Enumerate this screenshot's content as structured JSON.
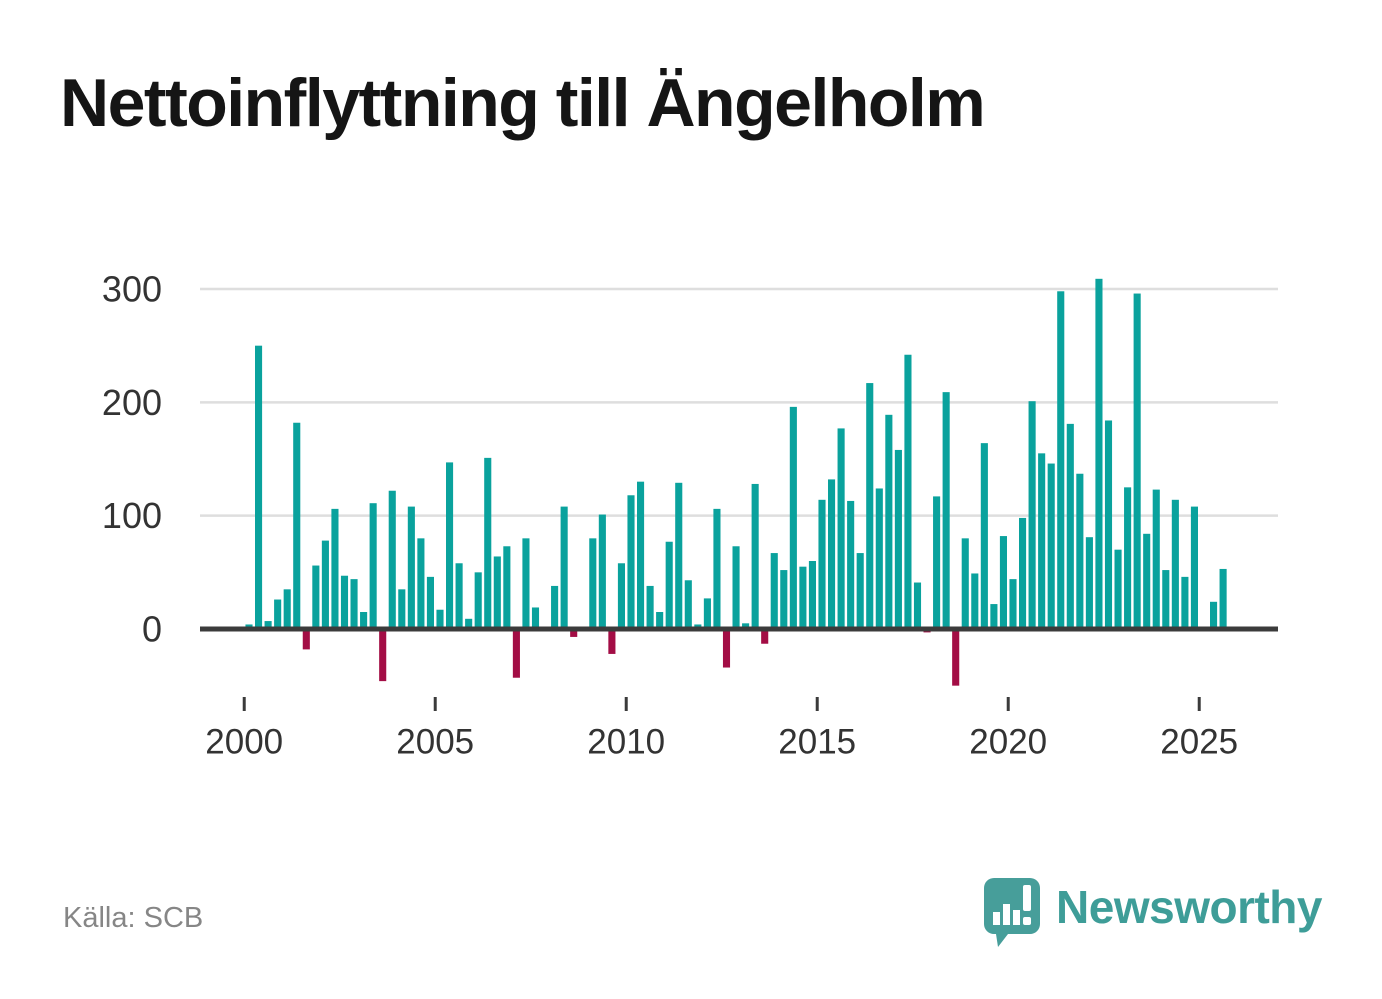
{
  "title": "Nettoinflyttning till Ängelholm",
  "source": "Källa: SCB",
  "logo": {
    "text": "Newsworthy",
    "icon": "speech-bubble-bar-chart-exclamation"
  },
  "colors": {
    "positive_bar": "#0AA29D",
    "negative_bar": "#A30D45",
    "gridline": "#DEDEDE",
    "axis": "#3B3B3B",
    "tick_label": "#333333",
    "title": "#151515",
    "source": "#868686",
    "logo": "#3E9D98"
  },
  "chart_data": {
    "type": "bar",
    "title": "Nettoinflyttning till Ängelholm",
    "xlabel": "",
    "ylabel": "",
    "frequency": "quarterly",
    "start_period": "2000-Q1",
    "end_period": "2025-Q3",
    "y_ticks": [
      0,
      100,
      200,
      300
    ],
    "x_tick_years": [
      "2000",
      "2005",
      "2010",
      "2015",
      "2020",
      "2025"
    ],
    "ylim": [
      -62,
      322
    ],
    "grid": true,
    "legend": false,
    "values": [
      4,
      250,
      7,
      26,
      35,
      182,
      -18,
      56,
      78,
      106,
      47,
      44,
      15,
      111,
      -46,
      122,
      35,
      108,
      80,
      46,
      17,
      147,
      58,
      9,
      50,
      151,
      64,
      73,
      -43,
      80,
      19,
      0,
      38,
      108,
      -7,
      0,
      80,
      101,
      -22,
      58,
      118,
      130,
      38,
      15,
      77,
      129,
      43,
      4,
      27,
      106,
      -34,
      73,
      5,
      128,
      -13,
      67,
      52,
      196,
      55,
      60,
      114,
      132,
      177,
      113,
      67,
      217,
      124,
      189,
      158,
      242,
      41,
      -3,
      117,
      209,
      -50,
      80,
      49,
      164,
      22,
      82,
      44,
      98,
      201,
      155,
      146,
      298,
      181,
      137,
      81,
      309,
      184,
      70,
      125,
      296,
      84,
      123,
      52,
      114,
      46,
      108,
      0,
      24,
      53
    ]
  }
}
